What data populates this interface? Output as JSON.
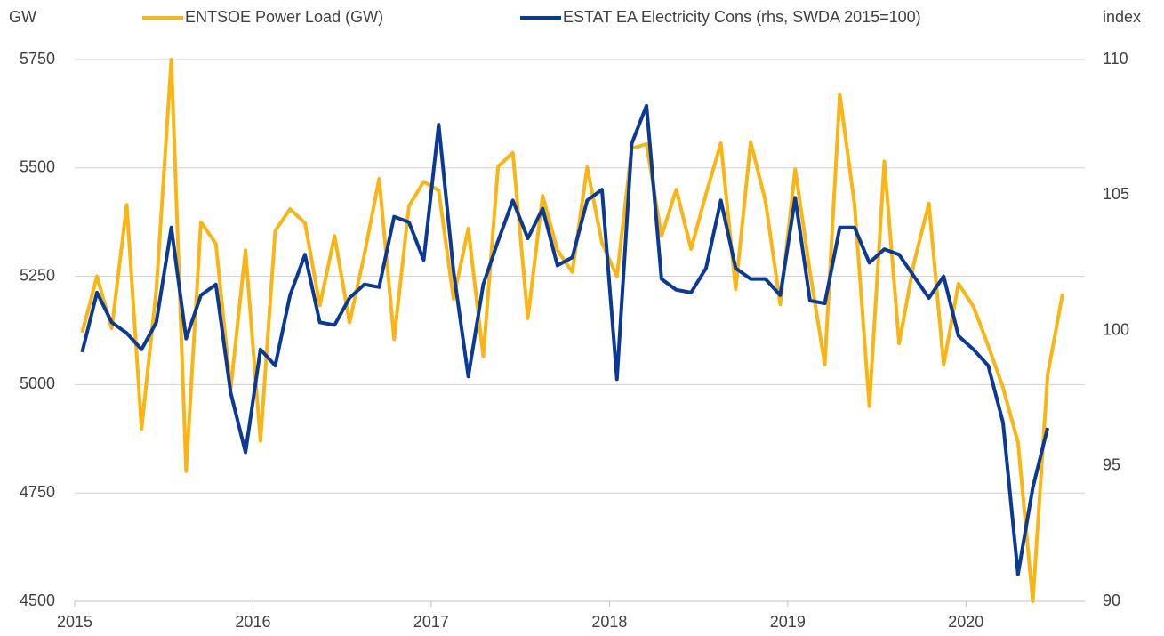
{
  "chart_data": {
    "type": "line",
    "y_label": "GW",
    "y2_label": "index",
    "x": [
      2015.042,
      2015.125,
      2015.208,
      2015.292,
      2015.375,
      2015.458,
      2015.542,
      2015.625,
      2015.708,
      2015.792,
      2015.875,
      2015.958,
      2016.042,
      2016.125,
      2016.208,
      2016.292,
      2016.375,
      2016.458,
      2016.542,
      2016.625,
      2016.708,
      2016.792,
      2016.875,
      2016.958,
      2017.042,
      2017.125,
      2017.208,
      2017.292,
      2017.375,
      2017.458,
      2017.542,
      2017.625,
      2017.708,
      2017.792,
      2017.875,
      2017.958,
      2018.042,
      2018.125,
      2018.208,
      2018.292,
      2018.375,
      2018.458,
      2018.542,
      2018.625,
      2018.708,
      2018.792,
      2018.875,
      2018.958,
      2019.042,
      2019.125,
      2019.208,
      2019.292,
      2019.375,
      2019.458,
      2019.542,
      2019.625,
      2019.708,
      2019.792,
      2019.875,
      2019.958,
      2020.042,
      2020.125,
      2020.208,
      2020.292,
      2020.375,
      2020.458,
      2020.542
    ],
    "series": [
      {
        "name": "ENTSOE Power Load (GW)",
        "color": "#f8b513",
        "axis": "y",
        "values": [
          5120,
          5250,
          5130,
          5415,
          4898,
          5220,
          5750,
          4800,
          5375,
          5325,
          4990,
          5310,
          4870,
          5355,
          5405,
          5373,
          5183,
          5343,
          5143,
          5300,
          5475,
          5105,
          5412,
          5468,
          5448,
          5198,
          5360,
          5065,
          5503,
          5535,
          5153,
          5436,
          5310,
          5260,
          5502,
          5327,
          5250,
          5545,
          5555,
          5343,
          5450,
          5313,
          5440,
          5557,
          5220,
          5560,
          5424,
          5185,
          5497,
          5260,
          5046,
          5670,
          5415,
          4950,
          5515,
          5095,
          5280,
          5418,
          5046,
          5233,
          5180,
          5090,
          4993,
          4867,
          4500,
          5022,
          5210
        ]
      },
      {
        "name": "ESTAT EA Electricity Cons (rhs, SWDA 2015=100)",
        "color": "#0a3a95",
        "axis": "y2",
        "values": [
          99.2,
          101.4,
          100.3,
          99.9,
          99.3,
          100.3,
          103.8,
          99.7,
          101.3,
          101.7,
          97.7,
          95.5,
          99.3,
          98.7,
          101.3,
          102.8,
          100.3,
          100.2,
          101.2,
          101.7,
          101.6,
          104.2,
          104.0,
          102.6,
          107.6,
          102.2,
          98.3,
          101.7,
          103.3,
          104.8,
          103.4,
          104.5,
          102.4,
          102.7,
          104.8,
          105.2,
          98.2,
          106.9,
          108.3,
          101.9,
          101.5,
          101.4,
          102.3,
          104.8,
          102.3,
          101.9,
          101.9,
          101.3,
          104.9,
          101.1,
          101.0,
          103.8,
          103.8,
          102.5,
          103.0,
          102.8,
          102.0,
          101.2,
          102.0,
          99.8,
          99.3,
          98.7,
          96.6,
          91.0,
          94.2,
          96.4,
          null
        ]
      }
    ],
    "xlim": [
      2015,
      2020.667
    ],
    "xticks": [
      2015,
      2016,
      2017,
      2018,
      2019,
      2020
    ],
    "ylim": [
      4500,
      5750
    ],
    "yticks": [
      4500,
      4750,
      5000,
      5250,
      5500,
      5750
    ],
    "y2lim": [
      90,
      110
    ],
    "y2ticks": [
      90,
      95,
      100,
      105,
      110
    ],
    "grid": true,
    "legend": "top"
  }
}
